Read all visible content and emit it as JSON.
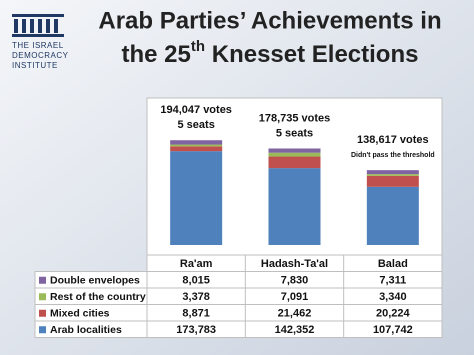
{
  "logo": {
    "lines": [
      "THE ISRAEL",
      "DEMOCRACY",
      "INSTITUTE"
    ]
  },
  "chart_data": {
    "type": "stacked-bar",
    "title_line1": "Arab Parties’ Achievements in",
    "title_line2": {
      "before": "the 25",
      "sup": "th",
      "after": " Knesset Elections"
    },
    "categories": [
      "Ra'am",
      "Hadash-Ta'al",
      "Balad"
    ],
    "annotations": [
      [
        "194,047 votes",
        "5 seats"
      ],
      [
        "178,735 votes",
        "5 seats"
      ],
      [
        "138,617 votes",
        "Didn't pass the threshold"
      ]
    ],
    "series": [
      {
        "name": "Double envelopes",
        "color": "#8064a2",
        "values": [
          8015,
          7830,
          7311
        ],
        "value_labels": [
          "8,015",
          "7,830",
          "7,311"
        ]
      },
      {
        "name": "Rest of the country",
        "color": "#9bbb59",
        "values": [
          3378,
          7091,
          3340
        ],
        "value_labels": [
          "3,378",
          "7,091",
          "3,340"
        ]
      },
      {
        "name": "Mixed cities",
        "color": "#c0504d",
        "values": [
          8871,
          21462,
          20224
        ],
        "value_labels": [
          "8,871",
          "21,462",
          "20,224"
        ]
      },
      {
        "name": "Arab localities",
        "color": "#4f81bd",
        "values": [
          173783,
          142352,
          107742
        ],
        "value_labels": [
          "173,783",
          "142,352",
          "107,742"
        ]
      }
    ],
    "ylim": [
      0,
      250000
    ]
  }
}
